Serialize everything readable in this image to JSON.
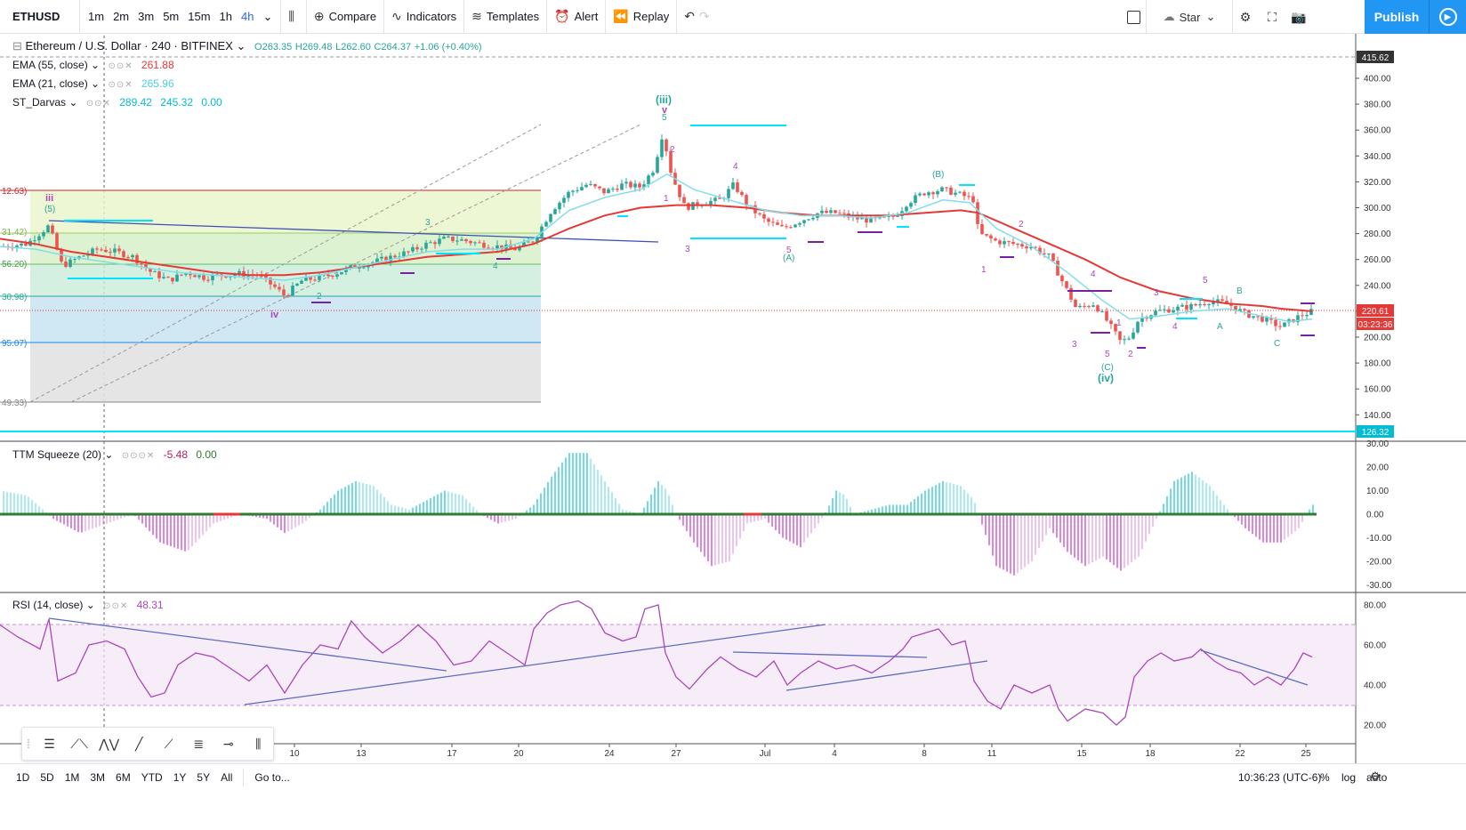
{
  "toolbar": {
    "symbol": "ETHUSD",
    "timeframes": [
      "1m",
      "2m",
      "3m",
      "5m",
      "15m",
      "1h",
      "4h"
    ],
    "active_timeframe": "4h",
    "compare": "Compare",
    "indicators": "Indicators",
    "templates": "Templates",
    "alert": "Alert",
    "replay": "Replay",
    "star": "Star",
    "publish": "Publish"
  },
  "header": {
    "title": "Ethereum / U.S. Dollar · 240 · BITFINEX",
    "ohlc": {
      "o": "O263.35",
      "h": "H269.48",
      "l": "L262.60",
      "c": "C264.37",
      "chg": "+1.06 (+0.40%)"
    }
  },
  "indicators": {
    "ema55": {
      "label": "EMA (55, close)",
      "value": "261.88",
      "color": "#e53935"
    },
    "ema21": {
      "label": "EMA (21, close)",
      "value": "265.96",
      "color": "#80deea"
    },
    "darvas": {
      "label": "ST_Darvas",
      "v1": "289.42",
      "v2": "245.32",
      "v3": "0.00",
      "color": "#00bcd4"
    },
    "ttm": {
      "label": "TTM Squeeze (20)",
      "v1": "-5.48",
      "v2": "0.00"
    },
    "rsi": {
      "label": "RSI (14, close)",
      "value": "48.31",
      "color": "#ab47bc"
    }
  },
  "price_scale": {
    "labels": [
      "400.00",
      "380.00",
      "360.00",
      "340.00",
      "320.00",
      "300.00",
      "280.00",
      "260.00",
      "240.00",
      "220.00",
      "200.00",
      "180.00",
      "160.00",
      "140.00"
    ],
    "top_marker": "415.62",
    "current_price": "220.61",
    "countdown": "03:23:36",
    "bottom_marker": "126.32"
  },
  "fib_labels": [
    "12.63)",
    "31.42)",
    "56.20)",
    "30.98)",
    "95.07)",
    "49.33)"
  ],
  "ttm_scale": [
    "30.00",
    "20.00",
    "10.00",
    "0.00",
    "-10.00",
    "-20.00",
    "-30.00"
  ],
  "rsi_scale": [
    "80.00",
    "60.00",
    "40.00",
    "20.00"
  ],
  "time_axis": [
    "10",
    "13",
    "17",
    "20",
    "24",
    "27",
    "Jul",
    "4",
    "8",
    "11",
    "15",
    "18",
    "22",
    "25"
  ],
  "bottom": {
    "ranges": [
      "1D",
      "5D",
      "1M",
      "3M",
      "6M",
      "YTD",
      "1Y",
      "5Y",
      "All"
    ],
    "goto": "Go to...",
    "clock": "10:36:23 (UTC-6)",
    "percent": "%",
    "log": "log",
    "auto": "auto"
  },
  "wave_labels": {
    "iii_top": "(iii)",
    "iii_v": "v",
    "iii_5": "5",
    "left_iii": "iii",
    "left_5": "(5)",
    "iv": "iv",
    "B_paren": "(B)",
    "A_paren": "(A)",
    "C_paren": "(C)",
    "iv_paren": "(iv)",
    "A": "A",
    "B": "B",
    "C": "C",
    "n1": "1",
    "n2": "2",
    "n3": "3",
    "n4": "4",
    "n5": "5"
  },
  "chart_data": {
    "type": "candlestick",
    "title": "Ethereum / U.S. Dollar · 240 · BITFINEX",
    "ylim": [
      126,
      416
    ],
    "close_path": [
      [
        0,
        270
      ],
      [
        30,
        272
      ],
      [
        55,
        286
      ],
      [
        70,
        255
      ],
      [
        90,
        262
      ],
      [
        110,
        268
      ],
      [
        130,
        266
      ],
      [
        150,
        262
      ],
      [
        170,
        250
      ],
      [
        190,
        244
      ],
      [
        210,
        250
      ],
      [
        230,
        246
      ],
      [
        250,
        248
      ],
      [
        270,
        249
      ],
      [
        290,
        248
      ],
      [
        310,
        238
      ],
      [
        320,
        232
      ],
      [
        340,
        244
      ],
      [
        360,
        246
      ],
      [
        380,
        250
      ],
      [
        400,
        255
      ],
      [
        420,
        258
      ],
      [
        440,
        262
      ],
      [
        460,
        266
      ],
      [
        480,
        272
      ],
      [
        500,
        276
      ],
      [
        520,
        275
      ],
      [
        540,
        272
      ],
      [
        560,
        270
      ],
      [
        580,
        268
      ],
      [
        600,
        275
      ],
      [
        620,
        298
      ],
      [
        640,
        312
      ],
      [
        660,
        318
      ],
      [
        680,
        312
      ],
      [
        700,
        318
      ],
      [
        720,
        316
      ],
      [
        735,
        330
      ],
      [
        745,
        358
      ],
      [
        755,
        325
      ],
      [
        770,
        300
      ],
      [
        790,
        304
      ],
      [
        810,
        306
      ],
      [
        825,
        318
      ],
      [
        840,
        302
      ],
      [
        860,
        290
      ],
      [
        880,
        284
      ],
      [
        900,
        290
      ],
      [
        920,
        296
      ],
      [
        940,
        296
      ],
      [
        960,
        292
      ],
      [
        980,
        290
      ],
      [
        1000,
        292
      ],
      [
        1010,
        296
      ],
      [
        1020,
        304
      ],
      [
        1040,
        312
      ],
      [
        1060,
        314
      ],
      [
        1080,
        310
      ],
      [
        1095,
        306
      ],
      [
        1100,
        280
      ],
      [
        1120,
        274
      ],
      [
        1140,
        272
      ],
      [
        1160,
        270
      ],
      [
        1180,
        262
      ],
      [
        1195,
        242
      ],
      [
        1210,
        222
      ],
      [
        1230,
        226
      ],
      [
        1245,
        212
      ],
      [
        1260,
        196
      ],
      [
        1270,
        200
      ],
      [
        1280,
        214
      ],
      [
        1300,
        220
      ],
      [
        1320,
        222
      ],
      [
        1340,
        224
      ],
      [
        1360,
        228
      ],
      [
        1380,
        226
      ],
      [
        1400,
        218
      ],
      [
        1420,
        214
      ],
      [
        1440,
        208
      ],
      [
        1460,
        216
      ],
      [
        1475,
        220
      ]
    ],
    "ema55_path": [
      [
        0,
        276
      ],
      [
        40,
        272
      ],
      [
        80,
        266
      ],
      [
        120,
        262
      ],
      [
        160,
        258
      ],
      [
        200,
        254
      ],
      [
        240,
        250
      ],
      [
        280,
        248
      ],
      [
        320,
        248
      ],
      [
        360,
        250
      ],
      [
        400,
        254
      ],
      [
        440,
        258
      ],
      [
        480,
        262
      ],
      [
        520,
        264
      ],
      [
        560,
        266
      ],
      [
        600,
        272
      ],
      [
        640,
        284
      ],
      [
        680,
        294
      ],
      [
        720,
        300
      ],
      [
        760,
        302
      ],
      [
        800,
        302
      ],
      [
        840,
        300
      ],
      [
        880,
        296
      ],
      [
        920,
        294
      ],
      [
        960,
        294
      ],
      [
        1000,
        294
      ],
      [
        1040,
        296
      ],
      [
        1080,
        298
      ],
      [
        1100,
        296
      ],
      [
        1140,
        284
      ],
      [
        1180,
        272
      ],
      [
        1220,
        260
      ],
      [
        1260,
        246
      ],
      [
        1300,
        236
      ],
      [
        1340,
        230
      ],
      [
        1380,
        226
      ],
      [
        1420,
        224
      ],
      [
        1440,
        222
      ],
      [
        1475,
        220
      ]
    ],
    "ema21_path": [
      [
        0,
        270
      ],
      [
        40,
        268
      ],
      [
        80,
        262
      ],
      [
        120,
        258
      ],
      [
        160,
        254
      ],
      [
        200,
        250
      ],
      [
        240,
        248
      ],
      [
        280,
        246
      ],
      [
        320,
        244
      ],
      [
        360,
        248
      ],
      [
        400,
        254
      ],
      [
        440,
        260
      ],
      [
        480,
        266
      ],
      [
        520,
        268
      ],
      [
        560,
        268
      ],
      [
        600,
        276
      ],
      [
        640,
        298
      ],
      [
        680,
        308
      ],
      [
        720,
        314
      ],
      [
        750,
        326
      ],
      [
        780,
        314
      ],
      [
        820,
        306
      ],
      [
        860,
        298
      ],
      [
        900,
        294
      ],
      [
        940,
        294
      ],
      [
        980,
        292
      ],
      [
        1020,
        296
      ],
      [
        1060,
        306
      ],
      [
        1090,
        304
      ],
      [
        1120,
        284
      ],
      [
        1160,
        270
      ],
      [
        1200,
        250
      ],
      [
        1240,
        228
      ],
      [
        1270,
        214
      ],
      [
        1300,
        216
      ],
      [
        1340,
        220
      ],
      [
        1380,
        222
      ],
      [
        1420,
        216
      ],
      [
        1450,
        212
      ],
      [
        1475,
        214
      ]
    ],
    "rsi_path": [
      [
        0,
        70
      ],
      [
        20,
        64
      ],
      [
        45,
        58
      ],
      [
        55,
        73
      ],
      [
        65,
        42
      ],
      [
        85,
        46
      ],
      [
        100,
        60
      ],
      [
        120,
        62
      ],
      [
        140,
        58
      ],
      [
        155,
        44
      ],
      [
        170,
        34
      ],
      [
        185,
        36
      ],
      [
        200,
        50
      ],
      [
        220,
        56
      ],
      [
        240,
        54
      ],
      [
        260,
        48
      ],
      [
        280,
        42
      ],
      [
        300,
        50
      ],
      [
        320,
        36
      ],
      [
        340,
        50
      ],
      [
        360,
        60
      ],
      [
        380,
        58
      ],
      [
        395,
        72
      ],
      [
        410,
        64
      ],
      [
        430,
        56
      ],
      [
        450,
        62
      ],
      [
        470,
        70
      ],
      [
        490,
        62
      ],
      [
        510,
        50
      ],
      [
        530,
        52
      ],
      [
        550,
        62
      ],
      [
        570,
        56
      ],
      [
        590,
        50
      ],
      [
        600,
        68
      ],
      [
        615,
        76
      ],
      [
        630,
        80
      ],
      [
        650,
        82
      ],
      [
        665,
        78
      ],
      [
        680,
        66
      ],
      [
        700,
        62
      ],
      [
        715,
        64
      ],
      [
        725,
        78
      ],
      [
        740,
        80
      ],
      [
        748,
        56
      ],
      [
        760,
        44
      ],
      [
        775,
        38
      ],
      [
        795,
        48
      ],
      [
        810,
        54
      ],
      [
        830,
        48
      ],
      [
        850,
        44
      ],
      [
        870,
        52
      ],
      [
        885,
        40
      ],
      [
        900,
        46
      ],
      [
        920,
        52
      ],
      [
        940,
        48
      ],
      [
        960,
        50
      ],
      [
        980,
        46
      ],
      [
        1000,
        52
      ],
      [
        1015,
        58
      ],
      [
        1025,
        64
      ],
      [
        1040,
        66
      ],
      [
        1055,
        68
      ],
      [
        1070,
        60
      ],
      [
        1085,
        62
      ],
      [
        1095,
        42
      ],
      [
        1110,
        32
      ],
      [
        1125,
        28
      ],
      [
        1140,
        40
      ],
      [
        1160,
        36
      ],
      [
        1180,
        40
      ],
      [
        1190,
        28
      ],
      [
        1200,
        22
      ],
      [
        1220,
        28
      ],
      [
        1240,
        26
      ],
      [
        1255,
        20
      ],
      [
        1265,
        24
      ],
      [
        1275,
        44
      ],
      [
        1290,
        52
      ],
      [
        1305,
        56
      ],
      [
        1320,
        52
      ],
      [
        1340,
        54
      ],
      [
        1350,
        58
      ],
      [
        1365,
        52
      ],
      [
        1380,
        48
      ],
      [
        1395,
        46
      ],
      [
        1410,
        40
      ],
      [
        1425,
        44
      ],
      [
        1440,
        40
      ],
      [
        1455,
        48
      ],
      [
        1465,
        56
      ],
      [
        1475,
        54
      ]
    ],
    "ttm_path": [
      [
        0,
        10
      ],
      [
        30,
        8
      ],
      [
        60,
        -2
      ],
      [
        90,
        -8
      ],
      [
        120,
        -4
      ],
      [
        150,
        0
      ],
      [
        180,
        -12
      ],
      [
        210,
        -16
      ],
      [
        240,
        -4
      ],
      [
        270,
        0
      ],
      [
        300,
        -2
      ],
      [
        320,
        -8
      ],
      [
        340,
        -4
      ],
      [
        360,
        2
      ],
      [
        380,
        10
      ],
      [
        400,
        14
      ],
      [
        420,
        12
      ],
      [
        440,
        4
      ],
      [
        460,
        2
      ],
      [
        480,
        6
      ],
      [
        500,
        10
      ],
      [
        520,
        8
      ],
      [
        540,
        0
      ],
      [
        560,
        -4
      ],
      [
        580,
        -2
      ],
      [
        600,
        4
      ],
      [
        620,
        16
      ],
      [
        640,
        26
      ],
      [
        660,
        26
      ],
      [
        680,
        14
      ],
      [
        700,
        2
      ],
      [
        720,
        0
      ],
      [
        740,
        14
      ],
      [
        750,
        10
      ],
      [
        760,
        0
      ],
      [
        780,
        -12
      ],
      [
        800,
        -22
      ],
      [
        820,
        -20
      ],
      [
        840,
        -4
      ],
      [
        860,
        -2
      ],
      [
        880,
        -10
      ],
      [
        900,
        -14
      ],
      [
        920,
        -4
      ],
      [
        930,
        2
      ],
      [
        940,
        10
      ],
      [
        950,
        8
      ],
      [
        960,
        0
      ],
      [
        980,
        2
      ],
      [
        1000,
        4
      ],
      [
        1020,
        4
      ],
      [
        1040,
        10
      ],
      [
        1060,
        14
      ],
      [
        1080,
        12
      ],
      [
        1095,
        6
      ],
      [
        1100,
        0
      ],
      [
        1120,
        -22
      ],
      [
        1140,
        -26
      ],
      [
        1160,
        -20
      ],
      [
        1180,
        -6
      ],
      [
        1200,
        -16
      ],
      [
        1220,
        -22
      ],
      [
        1240,
        -18
      ],
      [
        1260,
        -24
      ],
      [
        1280,
        -18
      ],
      [
        1300,
        -2
      ],
      [
        1320,
        14
      ],
      [
        1340,
        18
      ],
      [
        1360,
        12
      ],
      [
        1380,
        2
      ],
      [
        1400,
        -6
      ],
      [
        1420,
        -12
      ],
      [
        1440,
        -12
      ],
      [
        1460,
        -6
      ],
      [
        1475,
        4
      ]
    ]
  }
}
